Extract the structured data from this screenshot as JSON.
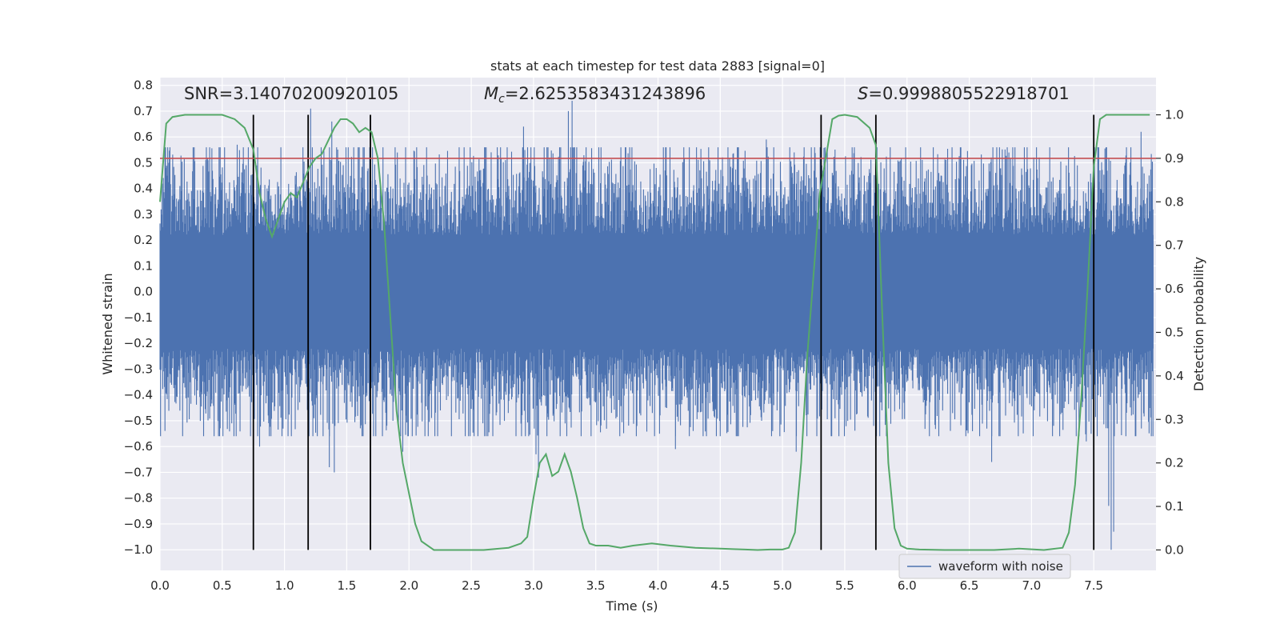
{
  "chart_data": {
    "type": "line",
    "title": "stats at each timestep for test data 2883 [signal=0]",
    "xlabel": "Time (s)",
    "ylabel_left": "Whitened strain",
    "ylabel_right": "Detection probability",
    "xlim": [
      0.0,
      8.0
    ],
    "ylim_left": [
      -1.08,
      0.83
    ],
    "ylim_right": [
      -0.047,
      1.0855
    ],
    "x_ticks": [
      "0.0",
      "0.5",
      "1.0",
      "1.5",
      "2.0",
      "2.5",
      "3.0",
      "3.5",
      "4.0",
      "4.5",
      "5.0",
      "5.5",
      "6.0",
      "6.5",
      "7.0",
      "7.5"
    ],
    "y_ticks_left": [
      "0.8",
      "0.7",
      "0.6",
      "0.5",
      "0.4",
      "0.3",
      "0.2",
      "0.1",
      "0.0",
      "−0.1",
      "−0.2",
      "−0.3",
      "−0.4",
      "−0.5",
      "−0.6",
      "−0.7",
      "−0.8",
      "−0.9",
      "−1.0"
    ],
    "y_ticks_right": [
      "1.0",
      "0.9",
      "0.8",
      "0.7",
      "0.6",
      "0.5",
      "0.4",
      "0.3",
      "0.2",
      "0.1",
      "0.0"
    ],
    "annotations": {
      "snr": "SNR=3.14070200920105",
      "mc_symbol": "M",
      "mc_sub": "c",
      "mc_value": "=2.6253583431243896",
      "s_symbol": "S",
      "s_value": "=0.9998805522918701"
    },
    "threshold_line": {
      "y": 0.9,
      "axis": "right",
      "color": "#c44e52"
    },
    "vertical_lines_x": [
      0.75,
      1.19,
      1.69,
      5.31,
      5.75,
      7.5
    ],
    "vertical_lines_range_right": [
      0.0,
      1.0
    ],
    "waveform": {
      "name": "waveform with noise",
      "color": "#4c72b0",
      "duration": 8.0,
      "core_amplitude": 0.22,
      "envelope_amplitude": 0.4,
      "seed": 2883,
      "spikes": [
        {
          "t": 3.31,
          "y": 0.74
        },
        {
          "t": 3.28,
          "y": 0.7
        },
        {
          "t": 2.92,
          "y": 0.64
        },
        {
          "t": 7.88,
          "y": 0.62
        },
        {
          "t": 7.54,
          "y": 0.56
        },
        {
          "t": 4.87,
          "y": 0.59
        },
        {
          "t": 1.21,
          "y": 0.71
        },
        {
          "t": 1.38,
          "y": 0.66
        },
        {
          "t": 0.62,
          "y": 0.57
        },
        {
          "t": 7.64,
          "y": -1.0
        },
        {
          "t": 7.62,
          "y": -0.83
        },
        {
          "t": 7.66,
          "y": -0.93
        },
        {
          "t": 1.4,
          "y": -0.7
        },
        {
          "t": 1.36,
          "y": -0.68
        },
        {
          "t": 3.04,
          "y": -0.72
        },
        {
          "t": 3.02,
          "y": -0.63
        },
        {
          "t": 0.8,
          "y": -0.6
        },
        {
          "t": 1.95,
          "y": -0.62
        },
        {
          "t": 4.14,
          "y": -0.61
        },
        {
          "t": 5.11,
          "y": -0.62
        },
        {
          "t": 6.68,
          "y": -0.66
        },
        {
          "t": 1.31,
          "y": -0.56
        },
        {
          "t": 0.47,
          "y": -0.56
        },
        {
          "t": 7.44,
          "y": -0.58
        }
      ]
    },
    "probability": {
      "name": "detection probability",
      "color": "#55a868",
      "t": [
        0.0,
        0.05,
        0.1,
        0.2,
        0.3,
        0.4,
        0.5,
        0.6,
        0.68,
        0.75,
        0.8,
        0.85,
        0.9,
        0.95,
        1.0,
        1.05,
        1.1,
        1.2,
        1.25,
        1.3,
        1.35,
        1.4,
        1.45,
        1.5,
        1.55,
        1.6,
        1.65,
        1.7,
        1.75,
        1.8,
        1.9,
        1.95,
        2.0,
        2.05,
        2.1,
        2.2,
        2.4,
        2.6,
        2.8,
        2.9,
        2.95,
        3.0,
        3.05,
        3.1,
        3.15,
        3.2,
        3.25,
        3.3,
        3.35,
        3.4,
        3.45,
        3.5,
        3.55,
        3.6,
        3.7,
        3.8,
        3.95,
        4.1,
        4.3,
        4.5,
        4.6,
        4.7,
        4.8,
        4.9,
        5.0,
        5.05,
        5.1,
        5.15,
        5.2,
        5.3,
        5.4,
        5.45,
        5.5,
        5.6,
        5.7,
        5.75,
        5.8,
        5.85,
        5.9,
        5.95,
        6.0,
        6.1,
        6.3,
        6.5,
        6.7,
        6.9,
        7.1,
        7.25,
        7.3,
        7.35,
        7.4,
        7.45,
        7.5,
        7.55,
        7.6,
        7.7,
        7.85,
        7.95
      ],
      "p": [
        0.8,
        0.98,
        0.995,
        1.0,
        1.0,
        1.0,
        1.0,
        0.99,
        0.97,
        0.92,
        0.82,
        0.76,
        0.72,
        0.76,
        0.8,
        0.82,
        0.81,
        0.88,
        0.9,
        0.91,
        0.94,
        0.97,
        0.99,
        0.99,
        0.98,
        0.96,
        0.97,
        0.96,
        0.9,
        0.75,
        0.32,
        0.2,
        0.13,
        0.06,
        0.02,
        0.0,
        0.0,
        0.0,
        0.005,
        0.015,
        0.03,
        0.12,
        0.2,
        0.22,
        0.17,
        0.18,
        0.22,
        0.18,
        0.12,
        0.05,
        0.015,
        0.01,
        0.01,
        0.01,
        0.005,
        0.01,
        0.015,
        0.01,
        0.005,
        0.003,
        0.002,
        0.001,
        0.0,
        0.001,
        0.001,
        0.005,
        0.04,
        0.2,
        0.45,
        0.82,
        0.99,
        0.998,
        1.0,
        0.995,
        0.97,
        0.93,
        0.55,
        0.2,
        0.05,
        0.01,
        0.003,
        0.001,
        0.0,
        0.0,
        0.0,
        0.003,
        0.0,
        0.005,
        0.04,
        0.15,
        0.35,
        0.6,
        0.88,
        0.99,
        1.0,
        1.0,
        1.0,
        1.0
      ]
    }
  }
}
